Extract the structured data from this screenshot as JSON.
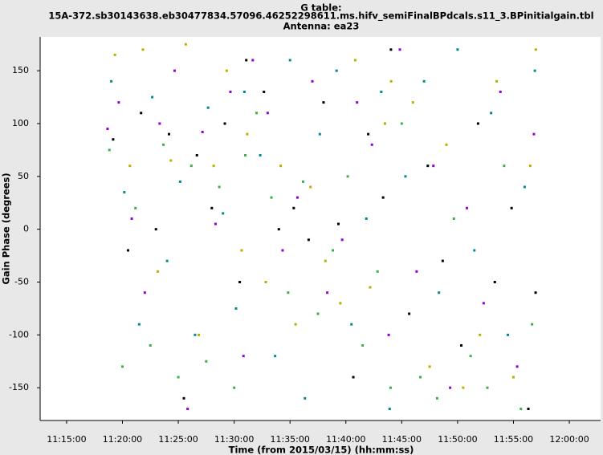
{
  "chart_data": {
    "type": "scatter",
    "title": [
      "G table:",
      "15A-372.sb30143638.eb30477834.57096.46252298611.ms.hifv_semiFinalBPdcals.s11_3.BPinitialgain.tbl",
      "Antenna: ea23"
    ],
    "x_label": "Time (from 2015/03/15) (hh:mm:ss)",
    "y_label": "Gain Phase (degrees)",
    "xlim": [
      40358,
      43368
    ],
    "ylim": [
      -181,
      182
    ],
    "xticks": [
      {
        "value": 40500,
        "label": "11:15:00"
      },
      {
        "value": 40800,
        "label": "11:20:00"
      },
      {
        "value": 41100,
        "label": "11:25:00"
      },
      {
        "value": 41400,
        "label": "11:30:00"
      },
      {
        "value": 41700,
        "label": "11:35:00"
      },
      {
        "value": 42000,
        "label": "11:40:00"
      },
      {
        "value": 42300,
        "label": "11:45:00"
      },
      {
        "value": 42600,
        "label": "11:50:00"
      },
      {
        "value": 42900,
        "label": "11:55:00"
      },
      {
        "value": 43200,
        "label": "12:00:00"
      }
    ],
    "yticks": [
      -150,
      -100,
      -50,
      0,
      50,
      100,
      150
    ],
    "series": [
      {
        "color": "#9400d3",
        "x": [
          40720,
          40780,
          40850,
          40920,
          41000,
          41080,
          41150,
          41230,
          41300,
          41380,
          41450,
          41500,
          41580,
          41660,
          41740,
          41820,
          41900,
          41980,
          42060,
          42140,
          42230,
          42290,
          42380,
          42470,
          42560,
          42650,
          42740,
          42830,
          42920,
          43010
        ],
        "y": [
          95,
          120,
          10,
          -60,
          100,
          150,
          -170,
          92,
          5,
          130,
          -120,
          160,
          110,
          -20,
          30,
          140,
          -60,
          -10,
          120,
          80,
          -100,
          170,
          -40,
          60,
          -150,
          20,
          -70,
          130,
          -130,
          90
        ]
      },
      {
        "color": "#3cb043",
        "x": [
          40730,
          40800,
          40870,
          40950,
          41020,
          41100,
          41170,
          41250,
          41320,
          41400,
          41460,
          41520,
          41600,
          41690,
          41770,
          41850,
          41930,
          42010,
          42090,
          42170,
          42240,
          42300,
          42400,
          42490,
          42580,
          42670,
          42760,
          42850,
          42940,
          43000
        ],
        "y": [
          75,
          -130,
          20,
          -110,
          80,
          -140,
          60,
          -125,
          40,
          -150,
          70,
          110,
          30,
          -60,
          45,
          -80,
          -20,
          50,
          -110,
          -40,
          -150,
          100,
          -140,
          -160,
          10,
          -120,
          -150,
          60,
          -170,
          -90
        ]
      },
      {
        "color": "#008b8b",
        "x": [
          40740,
          40810,
          40890,
          40960,
          41040,
          41110,
          41190,
          41260,
          41340,
          41410,
          41455,
          41540,
          41620,
          41700,
          41780,
          41860,
          41950,
          42030,
          42110,
          42190,
          42235,
          42320,
          42420,
          42500,
          42600,
          42690,
          42780,
          42870,
          42960,
          43015
        ],
        "y": [
          140,
          35,
          -90,
          125,
          -30,
          45,
          -100,
          115,
          15,
          -75,
          130,
          70,
          -120,
          160,
          -160,
          90,
          150,
          -90,
          10,
          130,
          -170,
          50,
          140,
          -60,
          170,
          -20,
          110,
          -100,
          40,
          150
        ]
      },
      {
        "color": "#000000",
        "x": [
          40750,
          40830,
          40900,
          40980,
          41050,
          41130,
          41200,
          41280,
          41350,
          41430,
          41465,
          41560,
          41640,
          41720,
          41800,
          41880,
          41960,
          42040,
          42120,
          42200,
          42242,
          42340,
          42440,
          42520,
          42620,
          42710,
          42800,
          42890,
          42980,
          43019
        ],
        "y": [
          85,
          -20,
          110,
          0,
          90,
          -160,
          70,
          20,
          100,
          -50,
          160,
          130,
          0,
          20,
          -10,
          120,
          5,
          -140,
          90,
          30,
          170,
          -80,
          60,
          -30,
          -110,
          100,
          -50,
          20,
          -170,
          -60
        ]
      },
      {
        "color": "#b8b000",
        "x": [
          40760,
          40840,
          40910,
          40990,
          41060,
          41140,
          41210,
          41290,
          41360,
          41440,
          41470,
          41570,
          41650,
          41730,
          41810,
          41890,
          41970,
          42050,
          42130,
          42210,
          42243,
          42360,
          42450,
          42540,
          42630,
          42720,
          42810,
          42900,
          42990,
          43020
        ],
        "y": [
          165,
          60,
          170,
          -40,
          65,
          175,
          -100,
          60,
          150,
          -20,
          90,
          -50,
          60,
          -90,
          40,
          -30,
          -70,
          160,
          -55,
          100,
          140,
          120,
          -130,
          80,
          -150,
          -100,
          140,
          -140,
          60,
          170
        ]
      }
    ]
  }
}
